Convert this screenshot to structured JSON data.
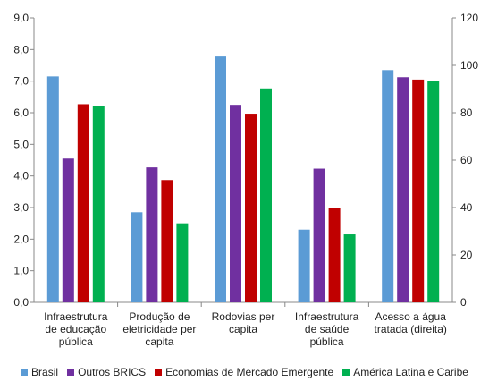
{
  "chart_data": {
    "type": "bar",
    "categories": [
      [
        "Infraestrutura",
        "de educação",
        "pública"
      ],
      [
        "Produção de",
        "eletricidade per",
        "capita"
      ],
      [
        "Rodovias per",
        "capita"
      ],
      [
        "Infraestrutura",
        "de saúde",
        "pública"
      ],
      [
        "Acesso a água",
        "tratada (direita)"
      ]
    ],
    "series": [
      {
        "name": "Brasil",
        "color": "#5b9bd5",
        "values": [
          7.15,
          2.85,
          7.78,
          2.3,
          98
        ]
      },
      {
        "name": "Outros BRICS",
        "color": "#7030a0",
        "values": [
          4.55,
          4.27,
          6.25,
          4.23,
          95
        ]
      },
      {
        "name": "Economias de Mercado Emergente",
        "color": "#c00000",
        "values": [
          6.27,
          3.87,
          5.97,
          2.98,
          94
        ]
      },
      {
        "name": "América Latina e Caribe",
        "color": "#00b050",
        "values": [
          6.2,
          2.5,
          6.77,
          2.15,
          93.5
        ]
      }
    ],
    "y_left": {
      "min": 0,
      "max": 9,
      "step": 1,
      "tick_labels": [
        "0,0",
        "1,0",
        "2,0",
        "3,0",
        "4,0",
        "5,0",
        "6,0",
        "7,0",
        "8,0",
        "9,0"
      ]
    },
    "y_right": {
      "min": 0,
      "max": 120,
      "step": 20,
      "tick_labels": [
        "0",
        "20",
        "40",
        "60",
        "80",
        "100",
        "120"
      ]
    },
    "right_axis_categories": [
      4
    ],
    "grid": false,
    "legend_position": "bottom"
  }
}
